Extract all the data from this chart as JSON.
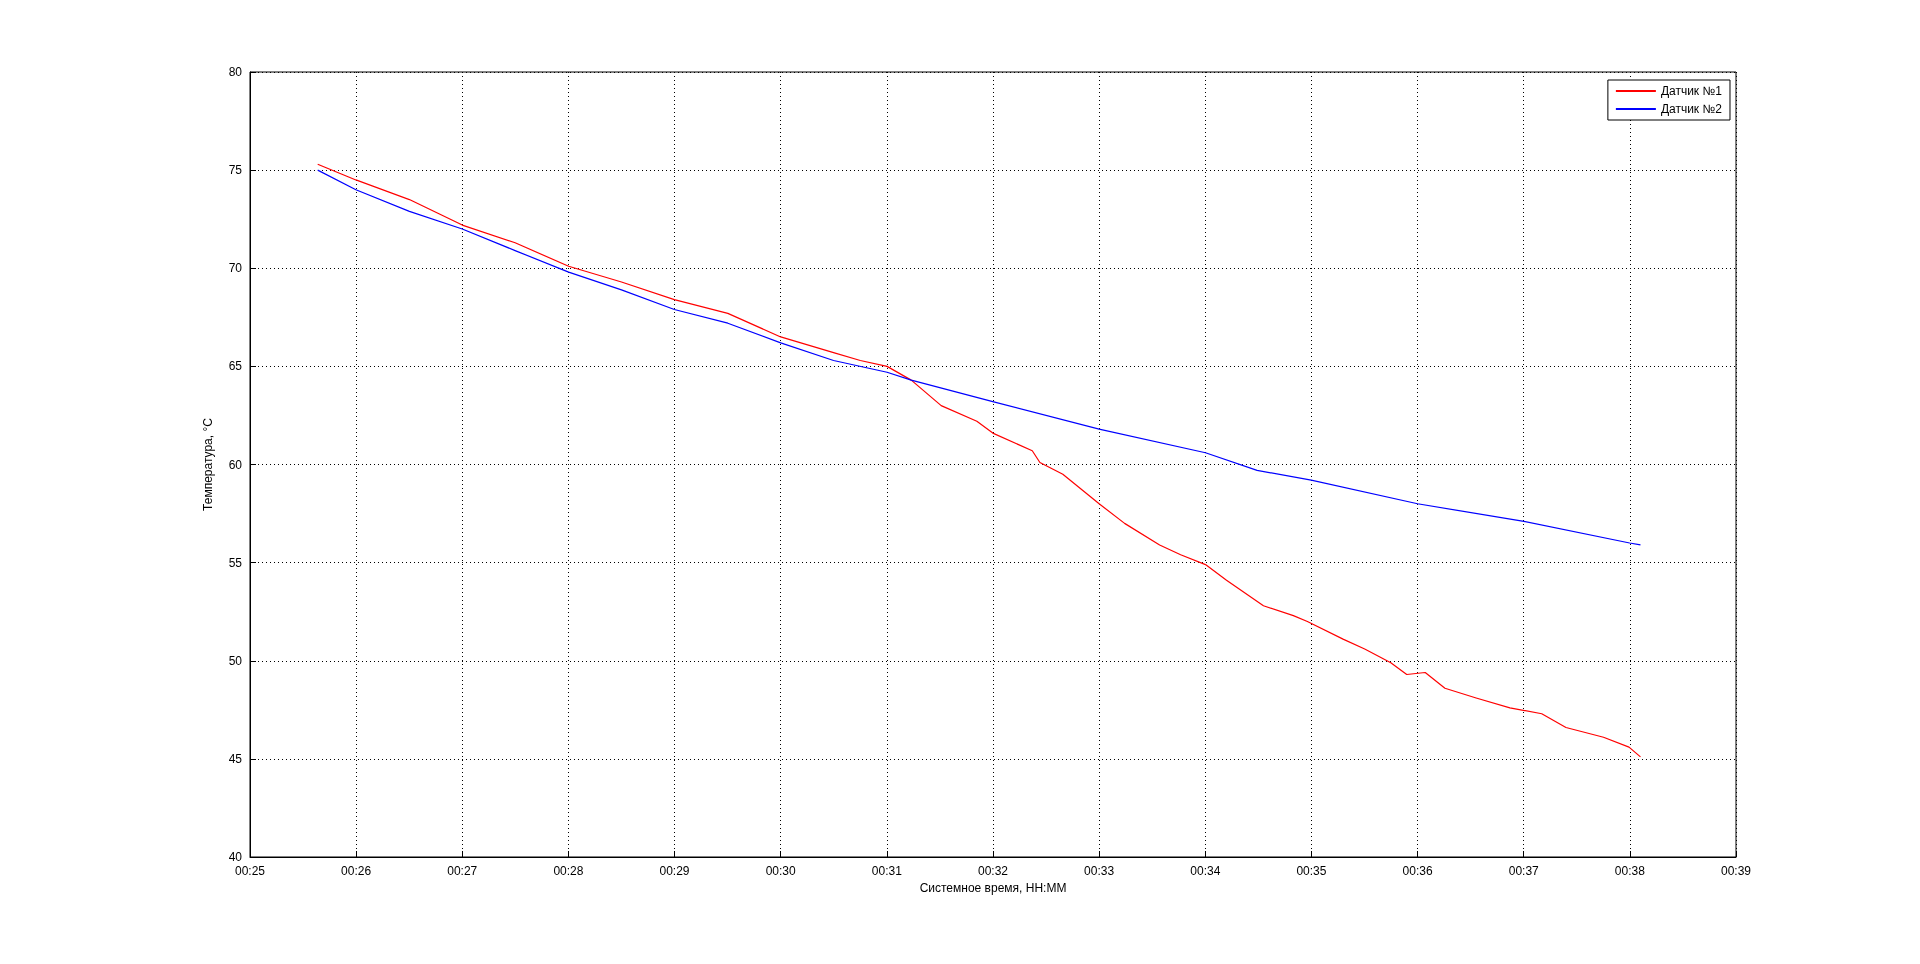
{
  "chart_data": {
    "type": "line",
    "xlabel": "Системное время, HH:MM",
    "ylabel": "Температура, °C",
    "xlim": [
      0.41667,
      0.65
    ],
    "xticks": [
      {
        "value": 0.41667,
        "label": "00:25"
      },
      {
        "value": 0.43333,
        "label": "00:26"
      },
      {
        "value": 0.45,
        "label": "00:27"
      },
      {
        "value": 0.46667,
        "label": "00:28"
      },
      {
        "value": 0.48333,
        "label": "00:29"
      },
      {
        "value": 0.5,
        "label": "00:30"
      },
      {
        "value": 0.51667,
        "label": "00:31"
      },
      {
        "value": 0.53333,
        "label": "00:32"
      },
      {
        "value": 0.55,
        "label": "00:33"
      },
      {
        "value": 0.56667,
        "label": "00:34"
      },
      {
        "value": 0.58333,
        "label": "00:35"
      },
      {
        "value": 0.6,
        "label": "00:36"
      },
      {
        "value": 0.61667,
        "label": "00:37"
      },
      {
        "value": 0.63333,
        "label": "00:38"
      },
      {
        "value": 0.65,
        "label": "00:39"
      }
    ],
    "ylim": [
      40,
      80
    ],
    "yticks": [
      40,
      45,
      50,
      55,
      60,
      65,
      70,
      75,
      80
    ],
    "grid": true,
    "legend": "top right",
    "marker": "none",
    "line_style": "solid",
    "series": [
      {
        "name": "Датчик №1",
        "color": "#ff0000",
        "x": [
          0.4273,
          0.4333,
          0.4417,
          0.45,
          0.4583,
          0.4667,
          0.475,
          0.4833,
          0.4917,
          0.5,
          0.5083,
          0.5125,
          0.5167,
          0.5205,
          0.5252,
          0.5308,
          0.5333,
          0.5395,
          0.5407,
          0.5443,
          0.55,
          0.554,
          0.5595,
          0.5628,
          0.5667,
          0.57,
          0.5758,
          0.5805,
          0.5827,
          0.5883,
          0.5917,
          0.5958,
          0.5983,
          0.6012,
          0.6043,
          0.6092,
          0.6145,
          0.6195,
          0.6233,
          0.6292,
          0.6332,
          0.635
        ],
        "values": [
          75.3,
          74.5,
          73.5,
          72.2,
          71.3,
          70.1,
          69.3,
          68.4,
          67.7,
          66.5,
          65.7,
          65.3,
          65.0,
          64.3,
          63.0,
          62.2,
          61.6,
          60.7,
          60.1,
          59.5,
          58.0,
          57.0,
          55.9,
          55.4,
          54.9,
          54.1,
          52.8,
          52.3,
          52.0,
          51.1,
          50.6,
          49.9,
          49.3,
          49.4,
          48.6,
          48.1,
          47.6,
          47.3,
          46.6,
          46.1,
          45.6,
          45.1
        ]
      },
      {
        "name": "Датчик №2",
        "color": "#0000ff",
        "x": [
          0.4273,
          0.4333,
          0.4417,
          0.45,
          0.4583,
          0.4667,
          0.475,
          0.4833,
          0.4917,
          0.5,
          0.5083,
          0.5167,
          0.5205,
          0.5333,
          0.55,
          0.5667,
          0.5748,
          0.5833,
          0.6,
          0.6167,
          0.6333,
          0.635
        ],
        "values": [
          75.0,
          74.0,
          72.9,
          72.0,
          70.9,
          69.8,
          68.9,
          67.9,
          67.2,
          66.2,
          65.3,
          64.7,
          64.3,
          63.2,
          61.8,
          60.6,
          59.7,
          59.2,
          58.0,
          57.1,
          56.0,
          55.9
        ]
      }
    ]
  }
}
